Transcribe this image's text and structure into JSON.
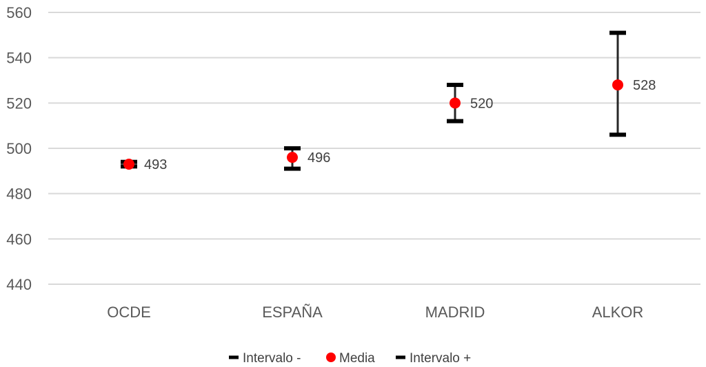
{
  "chart_data": {
    "type": "scatter",
    "title": "",
    "xlabel": "",
    "ylabel": "",
    "ylim": [
      440,
      560
    ],
    "yticks": [
      440,
      460,
      480,
      500,
      520,
      540,
      560
    ],
    "ytick_labels": [
      "440",
      "460",
      "480",
      "500",
      "520",
      "540",
      "560"
    ],
    "categories": [
      "OCDE",
      "ESPAÑA",
      "MADRID",
      "ALKOR"
    ],
    "grid": true,
    "legend_position": "bottom",
    "series": [
      {
        "name": "Intervalo -",
        "marker": "dash",
        "color": "#000000",
        "values": [
          492,
          491,
          512,
          506
        ]
      },
      {
        "name": "Media",
        "marker": "circle",
        "color": "#ff0000",
        "values": [
          493,
          496,
          520,
          528
        ]
      },
      {
        "name": "Intervalo +",
        "marker": "dash",
        "color": "#000000",
        "values": [
          494,
          500,
          528,
          551
        ]
      }
    ],
    "data_labels": [
      "493",
      "496",
      "520",
      "528"
    ]
  }
}
